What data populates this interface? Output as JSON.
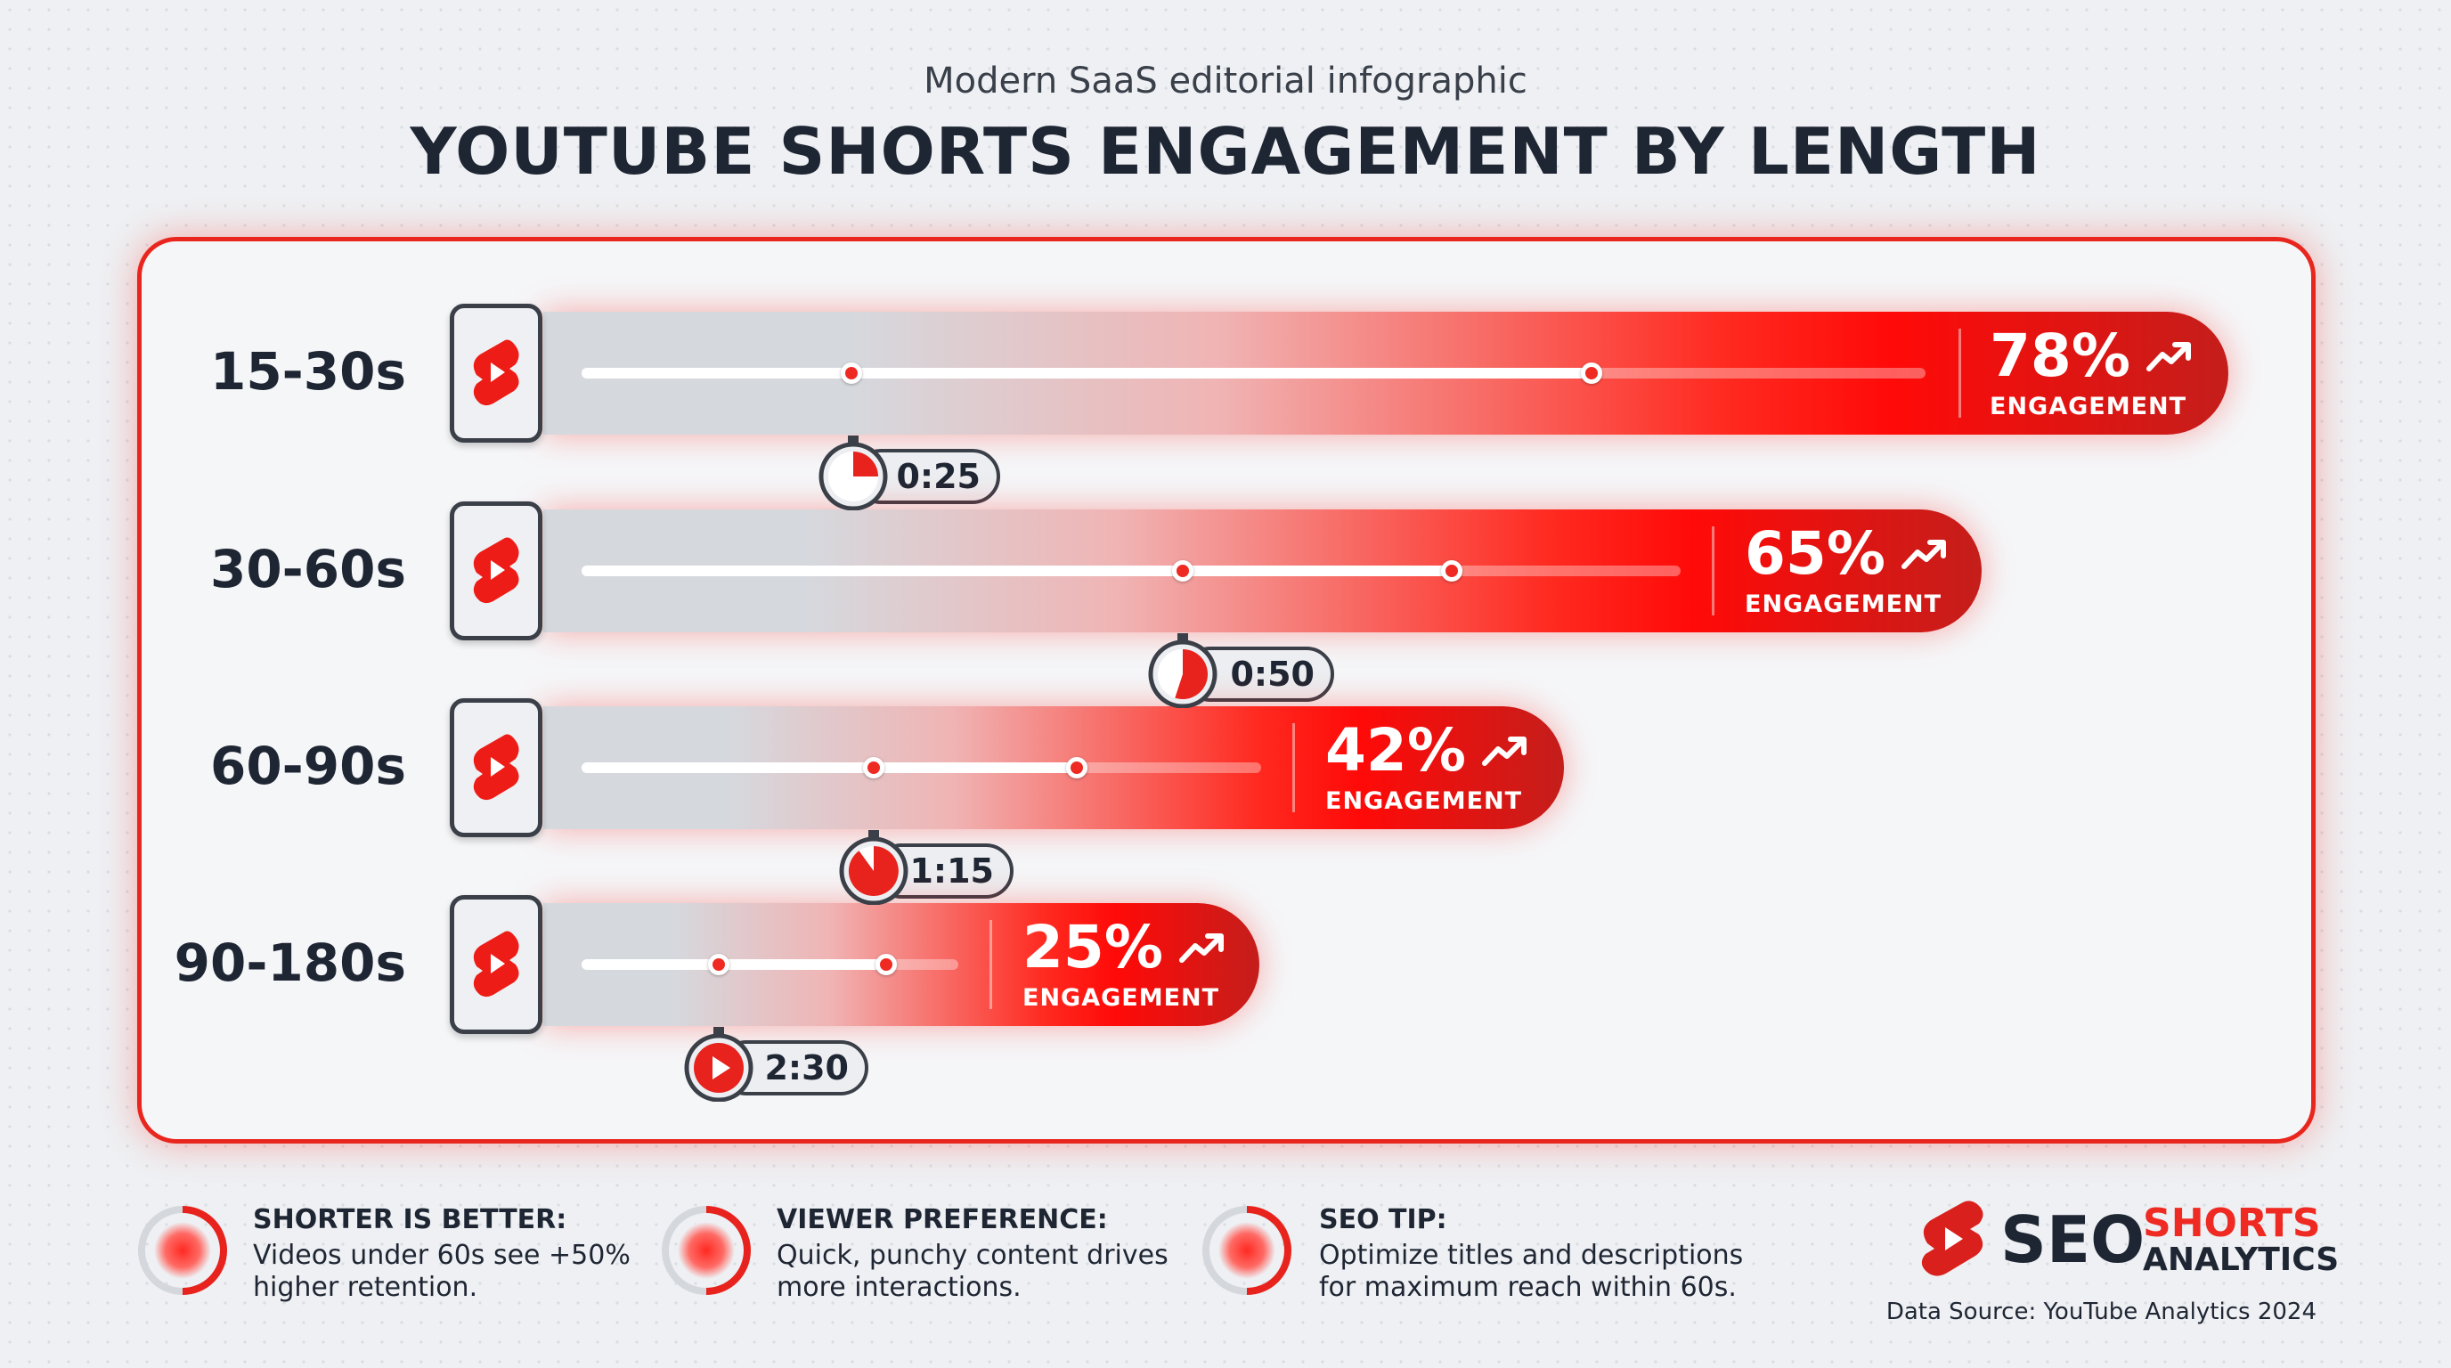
{
  "header": {
    "subtitle": "Modern SaaS editorial infographic",
    "title": "YOUTUBE SHORTS ENGAGEMENT BY LENGTH"
  },
  "colors": {
    "accent": "#ee2a22",
    "dark": "#1f2633",
    "bar_start": "#d5d9de",
    "bar_end": "#c41e1b"
  },
  "chart_data": {
    "type": "bar",
    "orientation": "horizontal",
    "categories": [
      "15-30s",
      "30-60s",
      "60-90s",
      "90-180s"
    ],
    "values": [
      78,
      65,
      42,
      25
    ],
    "value_suffix": "%",
    "value_caption": "ENGAGEMENT",
    "value_labels": [
      "78%",
      "65%",
      "42%",
      "25%"
    ],
    "timestamps": [
      "0:25",
      "0:50",
      "1:15",
      "2:30"
    ],
    "icons": [
      "youtube-shorts-icon",
      "stopwatch-icon",
      "trend-up-icon"
    ]
  },
  "footer": {
    "tips": [
      {
        "title": "SHORTER IS BETTER:",
        "lines": [
          "Videos under 60s see +50%",
          "higher retention."
        ]
      },
      {
        "title": "VIEWER PREFERENCE:",
        "lines": [
          "Quick, punchy content drives",
          "more interactions."
        ]
      },
      {
        "title": "SEO TIP:",
        "lines": [
          "Optimize titles and descriptions",
          "for maximum reach within 60s."
        ]
      }
    ],
    "logo": {
      "seo": "SEO",
      "shorts": "SHORTS",
      "analytics": "ANALYTICS"
    },
    "source": "Data Source: YouTube Analytics 2024"
  }
}
